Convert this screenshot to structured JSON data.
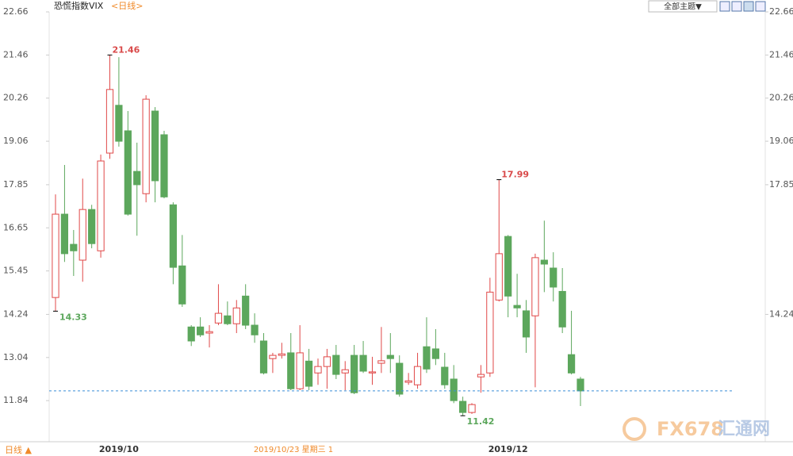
{
  "chart_data": {
    "type": "candlestick",
    "title": "恐慌指数VIX",
    "period": "<日线>",
    "theme_button": "全部主题▼",
    "period_switch": "日线 ▲",
    "status_text": "2019/10/23 星期三 1",
    "watermark": {
      "brand": "FX678",
      "name": "汇通网"
    },
    "up_color": "#e04848",
    "down_color": "#5ca75c",
    "categories": [
      null,
      null,
      null,
      null,
      null,
      null,
      null,
      "2019/10",
      null,
      null,
      null,
      null,
      null,
      null,
      null,
      null,
      null,
      null,
      null,
      null,
      null,
      null,
      null,
      null,
      null,
      null,
      null,
      null,
      null,
      null,
      null,
      null,
      null,
      null,
      null,
      null,
      null,
      null,
      null,
      null,
      null,
      null,
      null,
      null,
      null,
      null,
      null,
      null,
      null,
      null,
      "2019/12",
      null,
      null,
      null,
      null,
      null,
      null,
      null,
      null
    ],
    "open": [
      14.71,
      17.03,
      16.19,
      15.75,
      17.16,
      16.01,
      18.73,
      20.06,
      19.35,
      18.22,
      17.6,
      19.9,
      19.24,
      17.29,
      15.59,
      13.89,
      13.89,
      13.72,
      14.0,
      14.2,
      13.98,
      14.75,
      13.94,
      13.5,
      13.01,
      13.1,
      13.17,
      12.17,
      12.94,
      12.61,
      12.79,
      13.1,
      12.61,
      13.1,
      13.1,
      12.61,
      12.88,
      13.1,
      12.88,
      12.35,
      12.28,
      13.34,
      13.28,
      12.77,
      12.44,
      11.82,
      11.51,
      12.5,
      12.61,
      14.64,
      16.41,
      14.49,
      14.34,
      14.2,
      15.75,
      15.53,
      14.88,
      13.12,
      12.44
    ],
    "high": [
      17.58,
      18.4,
      16.59,
      18.02,
      17.29,
      18.69,
      21.46,
      21.4,
      19.9,
      19.02,
      20.34,
      20.01,
      19.35,
      17.36,
      16.45,
      13.94,
      14.16,
      13.94,
      15.08,
      14.6,
      14.64,
      15.08,
      14.27,
      13.72,
      13.17,
      13.45,
      13.72,
      13.94,
      13.28,
      13.01,
      13.28,
      13.39,
      12.94,
      13.39,
      13.5,
      13.06,
      13.89,
      13.72,
      13.1,
      12.61,
      13.17,
      14.16,
      13.83,
      13.17,
      12.83,
      11.95,
      11.77,
      12.83,
      15.26,
      17.99,
      16.45,
      15.37,
      14.64,
      15.93,
      16.85,
      15.97,
      15.53,
      14.34,
      12.5
    ],
    "low": [
      14.33,
      15.7,
      15.31,
      15.15,
      16.08,
      15.82,
      18.57,
      18.91,
      16.99,
      16.43,
      17.36,
      17.36,
      17.47,
      15.08,
      14.45,
      13.36,
      13.61,
      13.32,
      13.94,
      13.94,
      13.72,
      13.83,
      13.45,
      12.57,
      12.61,
      13.01,
      12.13,
      12.13,
      12.13,
      12.28,
      12.17,
      12.44,
      12.13,
      12.02,
      12.61,
      12.28,
      12.61,
      12.61,
      11.95,
      12.28,
      12.17,
      12.61,
      12.83,
      12.17,
      11.77,
      11.42,
      11.47,
      12.06,
      12.5,
      14.6,
      14.16,
      14.16,
      13.17,
      12.21,
      14.86,
      14.6,
      13.72,
      12.57,
      11.69
    ],
    "close": [
      17.03,
      15.93,
      16.01,
      17.16,
      16.21,
      18.51,
      20.5,
      19.06,
      17.03,
      17.85,
      20.23,
      17.96,
      17.51,
      15.55,
      14.53,
      13.5,
      13.67,
      13.76,
      14.27,
      13.98,
      14.42,
      13.94,
      13.67,
      12.61,
      13.1,
      13.14,
      12.17,
      13.17,
      12.24,
      12.79,
      13.06,
      12.57,
      12.7,
      12.06,
      12.66,
      12.64,
      12.95,
      13.01,
      12.02,
      12.39,
      12.79,
      12.72,
      13.01,
      12.28,
      11.84,
      11.51,
      11.73,
      12.57,
      14.86,
      15.93,
      14.75,
      14.42,
      13.61,
      15.82,
      15.64,
      15.0,
      13.89,
      12.61,
      12.11
    ],
    "high_marks": [
      21.46,
      17.99
    ],
    "low_marks": [
      14.33,
      11.42
    ],
    "ylim": [
      10.74,
      22.66
    ],
    "yticks": [
      11.84,
      13.04,
      14.24,
      15.45,
      16.65,
      17.85,
      19.06,
      20.26,
      21.46,
      22.66
    ],
    "y2lim": [
      10.74,
      22.66
    ],
    "y2ticks": [
      14.24,
      17.85,
      19.06,
      20.26,
      21.46,
      22.66
    ]
  }
}
